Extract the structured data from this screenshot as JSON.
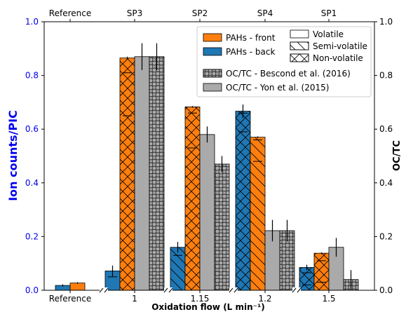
{
  "chart_data": {
    "type": "bar",
    "xlabel": "Oxidation flow (L min⁻¹)",
    "ylabel_left": "Ion counts/PIC",
    "ylabel_right": "OC/TC",
    "ylim": [
      0,
      1.0
    ],
    "yticks": [
      "0.0",
      "0.2",
      "0.4",
      "0.6",
      "0.8",
      "1.0"
    ],
    "grid": false,
    "legend_position": "top-right",
    "colors": {
      "front": "#ff7f0e",
      "back": "#1f77b4",
      "oc": "#aaaaaa",
      "left_axis": "#0000ee"
    },
    "groups": [
      {
        "bottom_label": "Reference",
        "top_label": "Reference",
        "bars": [
          {
            "series": "PAHs - back",
            "value": 0.018,
            "err": 0.004,
            "pattern": "none"
          },
          {
            "series": "PAHs - front",
            "value": 0.027,
            "err": 0.003,
            "pattern": "none"
          }
        ]
      },
      {
        "bottom_label": "1",
        "top_label": "SP3",
        "bars": [
          {
            "series": "PAHs - back",
            "value": 0.072,
            "err": 0.02,
            "pattern": "volatile",
            "internal_ticks": [
              0.05
            ]
          },
          {
            "series": "PAHs - front",
            "value": 0.865,
            "err": 0.005,
            "pattern": "nonvolatile",
            "internal_ticks": [
              0.81,
              0.65
            ]
          },
          {
            "series": "OC/TC - Yon et al. (2015)",
            "value": 0.87,
            "err": 0.05,
            "pattern": "volatile"
          },
          {
            "series": "OC/TC - Bescond et al. (2016)",
            "value": 0.87,
            "err": 0.05,
            "pattern": "circles"
          }
        ]
      },
      {
        "bottom_label": "1.15",
        "top_label": "SP2",
        "bars": [
          {
            "series": "PAHs - back",
            "value": 0.16,
            "err": 0.02,
            "pattern": "semivolatile",
            "internal_ticks": [
              0.13
            ]
          },
          {
            "series": "PAHs - front",
            "value": 0.683,
            "err": 0.003,
            "pattern": "nonvolatile",
            "internal_ticks": [
              0.66,
              0.53
            ]
          },
          {
            "series": "OC/TC - Yon et al. (2015)",
            "value": 0.58,
            "err": 0.03,
            "pattern": "volatile"
          },
          {
            "series": "OC/TC - Bescond et al. (2016)",
            "value": 0.47,
            "err": 0.03,
            "pattern": "circles"
          }
        ]
      },
      {
        "bottom_label": "1.2",
        "top_label": "SP4",
        "bars": [
          {
            "series": "PAHs - back",
            "value": 0.667,
            "err": 0.025,
            "pattern": "nonvolatile",
            "internal_ticks": [
              0.66,
              0.59
            ]
          },
          {
            "series": "PAHs - front",
            "value": 0.57,
            "err": 0.003,
            "pattern": "semivolatile",
            "internal_ticks": [
              0.56,
              0.48
            ]
          },
          {
            "series": "OC/TC - Yon et al. (2015)",
            "value": 0.222,
            "err": 0.04,
            "pattern": "volatile"
          },
          {
            "series": "OC/TC - Bescond et al. (2016)",
            "value": 0.222,
            "err": 0.04,
            "pattern": "circles"
          }
        ]
      },
      {
        "bottom_label": "1.5",
        "top_label": "SP1",
        "bars": [
          {
            "series": "PAHs - back",
            "value": 0.085,
            "err": 0.01,
            "pattern": "nonvolatile",
            "internal_ticks": [
              0.065,
              0.02
            ]
          },
          {
            "series": "PAHs - front",
            "value": 0.138,
            "err": 0.003,
            "pattern": "nonvolatile",
            "internal_ticks": [
              0.11,
              0.03
            ]
          },
          {
            "series": "OC/TC - Yon et al. (2015)",
            "value": 0.16,
            "err": 0.035,
            "pattern": "volatile"
          },
          {
            "series": "OC/TC - Bescond et al. (2016)",
            "value": 0.04,
            "err": 0.035,
            "pattern": "circles"
          }
        ]
      }
    ],
    "legend": [
      {
        "label": "PAHs - front",
        "kind": "front"
      },
      {
        "label": "PAHs - back",
        "kind": "back"
      },
      {
        "label": "OC/TC - Bescond et al. (2016)",
        "kind": "bescond"
      },
      {
        "label": "OC/TC - Yon et al. (2015)",
        "kind": "yon"
      }
    ],
    "hatch_legend": [
      {
        "label": "Volatile",
        "pattern": "volatile"
      },
      {
        "label": "Semi-volatile",
        "pattern": "semivolatile"
      },
      {
        "label": "Non-volatile",
        "pattern": "nonvolatile"
      }
    ]
  }
}
